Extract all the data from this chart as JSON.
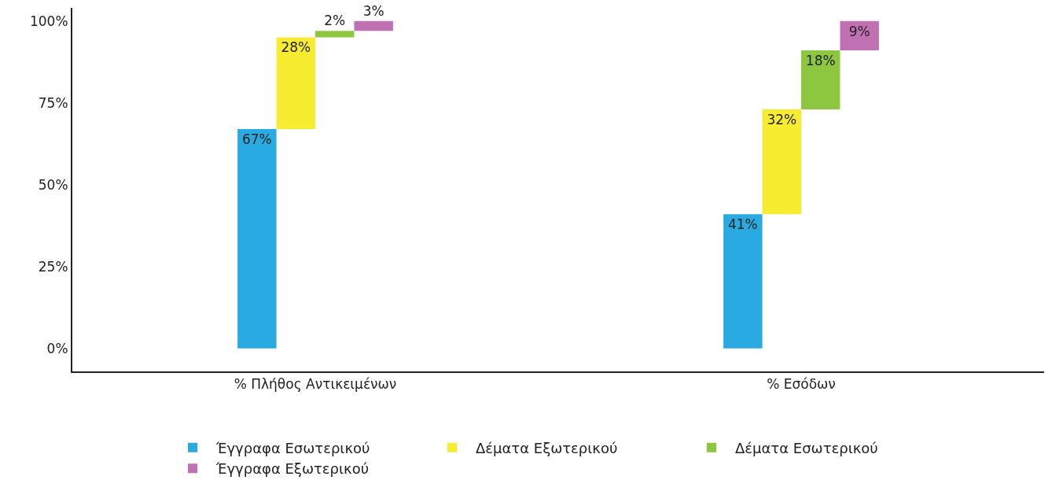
{
  "chart_data": {
    "type": "bar",
    "categories": [
      "% Πλήθος Αντικειμένων",
      "% Εσόδων"
    ],
    "series": [
      {
        "name": "Έγγραφα Εσωτερικού",
        "color": "#29abe2",
        "values": [
          67,
          41
        ],
        "base": [
          0,
          0
        ],
        "value_labels": [
          "67%",
          "41%"
        ]
      },
      {
        "name": "Δέματα Εξωτερικού",
        "color": "#f7ec30",
        "values": [
          28,
          32
        ],
        "base": [
          67,
          41
        ],
        "value_labels": [
          "28%",
          "32%"
        ]
      },
      {
        "name": "Δέματα Εσωτερικού",
        "color": "#8dc63f",
        "values": [
          2,
          18
        ],
        "base": [
          95,
          73
        ],
        "value_labels": [
          "2%",
          "18%"
        ]
      },
      {
        "name": "Έγγραφα Εξωτερικού",
        "color": "#c071b4",
        "values": [
          3,
          9
        ],
        "base": [
          97,
          91
        ],
        "value_labels": [
          "3%",
          "9%"
        ]
      }
    ],
    "ylim": [
      -7,
      104
    ],
    "yticks": [
      {
        "value": 0,
        "label": "0%"
      },
      {
        "value": 25,
        "label": "25%"
      },
      {
        "value": 50,
        "label": "50%"
      },
      {
        "value": 75,
        "label": "75%"
      },
      {
        "value": 100,
        "label": "100%"
      }
    ],
    "legend": "bottom"
  }
}
